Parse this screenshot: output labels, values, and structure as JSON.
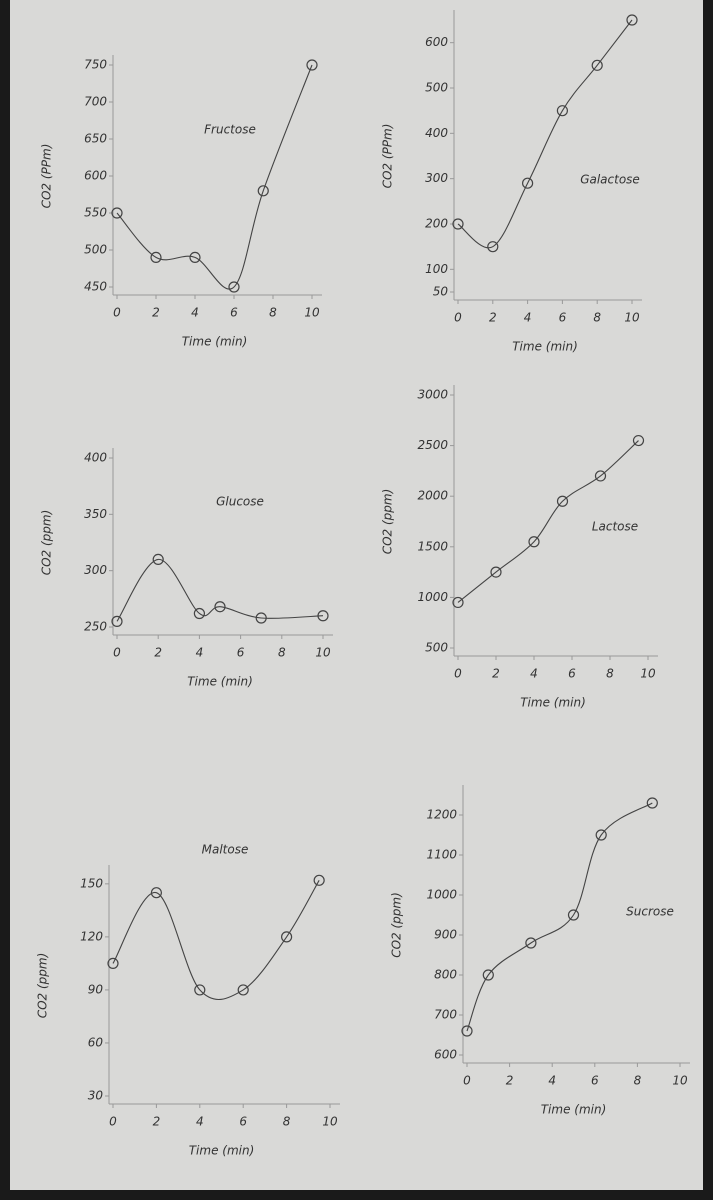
{
  "chart_data": [
    {
      "type": "line",
      "title": "Fructose",
      "x_label": "Time (min)",
      "y_label": "CO2 (PPm)",
      "color": "#444444",
      "x": [
        0,
        2,
        4,
        6,
        7.5,
        10
      ],
      "values": [
        550,
        490,
        490,
        450,
        580,
        750
      ],
      "xlim": [
        0,
        10
      ],
      "xticks": [
        0,
        2,
        4,
        6,
        8,
        10
      ],
      "ylim": [
        450,
        750
      ],
      "yticks": [
        450,
        500,
        550,
        600,
        650,
        700,
        750
      ]
    },
    {
      "type": "line",
      "title": "Galactose",
      "x_label": "Time (min)",
      "y_label": "CO2 (PPm)",
      "color": "#444444",
      "x": [
        0,
        2,
        4,
        6,
        8,
        10
      ],
      "values": [
        200,
        150,
        290,
        450,
        550,
        650
      ],
      "xlim": [
        0,
        10
      ],
      "xticks": [
        0,
        2,
        4,
        6,
        8,
        10
      ],
      "ylim": [
        50,
        650
      ],
      "yticks": [
        50,
        100,
        200,
        300,
        400,
        500,
        600
      ]
    },
    {
      "type": "line",
      "title": "Glucose",
      "x_label": "Time (min)",
      "y_label": "CO2 (ppm)",
      "color": "#444444",
      "x": [
        0,
        2,
        4,
        5,
        7,
        10
      ],
      "values": [
        255,
        310,
        262,
        268,
        258,
        260
      ],
      "xlim": [
        0,
        10
      ],
      "xticks": [
        0,
        2,
        4,
        6,
        8,
        10
      ],
      "ylim": [
        250,
        400
      ],
      "yticks": [
        250,
        300,
        350,
        400
      ]
    },
    {
      "type": "line",
      "title": "Lactose",
      "x_label": "Time (min)",
      "y_label": "CO2 (ppm)",
      "color": "#444444",
      "x": [
        0,
        2,
        4,
        5.5,
        7.5,
        9.5
      ],
      "values": [
        950,
        1250,
        1550,
        1950,
        2200,
        2550
      ],
      "xlim": [
        0,
        10
      ],
      "xticks": [
        0,
        2,
        4,
        6,
        8,
        10
      ],
      "ylim": [
        500,
        3000
      ],
      "yticks": [
        500,
        1000,
        1500,
        2000,
        2500,
        3000
      ]
    },
    {
      "type": "line",
      "title": "Maltose",
      "x_label": "Time (min)",
      "y_label": "CO2 (ppm)",
      "color": "#444444",
      "x": [
        0,
        2,
        4,
        6,
        8,
        9.5
      ],
      "values": [
        105,
        145,
        90,
        90,
        120,
        152
      ],
      "xlim": [
        0,
        10
      ],
      "xticks": [
        0,
        2,
        4,
        6,
        8,
        10
      ],
      "ylim": [
        30,
        155
      ],
      "yticks": [
        30,
        60,
        90,
        120,
        150
      ]
    },
    {
      "type": "line",
      "title": "Sucrose",
      "x_label": "Time (min)",
      "y_label": "CO2 (ppm)",
      "color": "#444444",
      "x": [
        0,
        1,
        3,
        5,
        6.3,
        8.7
      ],
      "values": [
        660,
        800,
        880,
        950,
        1150,
        1230
      ],
      "xlim": [
        0,
        10
      ],
      "xticks": [
        0,
        2,
        4,
        6,
        8,
        10
      ],
      "ylim": [
        600,
        1250
      ],
      "yticks": [
        600,
        700,
        800,
        900,
        1000,
        1100,
        1200
      ]
    }
  ]
}
